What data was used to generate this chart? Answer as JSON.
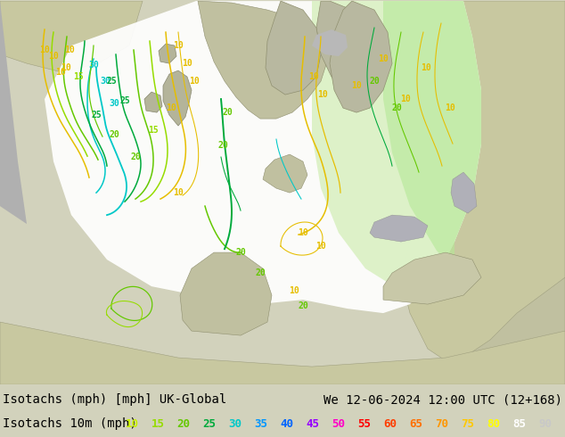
{
  "title_left": "Isotachs (mph) [mph] UK-Global",
  "title_right": "We 12-06-2024 12:00 UTC (12+168)",
  "legend_label": "Isotachs 10m (mph)",
  "legend_values": [
    10,
    15,
    20,
    25,
    30,
    35,
    40,
    45,
    50,
    55,
    60,
    65,
    70,
    75,
    80,
    85,
    90
  ],
  "legend_colors": [
    "#c8f000",
    "#96dc00",
    "#64c800",
    "#00aa3c",
    "#00c8c8",
    "#0096ff",
    "#0064ff",
    "#9600ff",
    "#ff00c8",
    "#ff0000",
    "#ff3c00",
    "#ff6e00",
    "#ff9600",
    "#ffc800",
    "#ffff00",
    "#ffffff",
    "#c8c8c8"
  ],
  "bg_color_land": "#c8c8a0",
  "bg_color_ocean": "#b4b4b4",
  "bg_color_bottom": "#d2d2bc",
  "text_color": "#000000",
  "font_size_title": 10,
  "font_size_legend_label": 10,
  "font_size_legend_values": 9,
  "fig_width": 6.34,
  "fig_height": 4.9,
  "dpi": 100,
  "map_bg": "#c8c8a0",
  "ocean_color": "#b8b8b8",
  "land_color": "#c8c8a0",
  "sea_gray": "#a8a8a8",
  "cone_white": "#ffffff",
  "cone_light_green": "#d8f0c0",
  "cone_green": "#b4e896",
  "cone_green2": "#c8f0a0",
  "contour_10_color": "#e6be00",
  "contour_15_color": "#96dc00",
  "contour_20_color": "#64c800",
  "contour_25_color": "#00aa3c",
  "contour_30_color": "#00c8c8",
  "contour_35_color": "#0096ff"
}
